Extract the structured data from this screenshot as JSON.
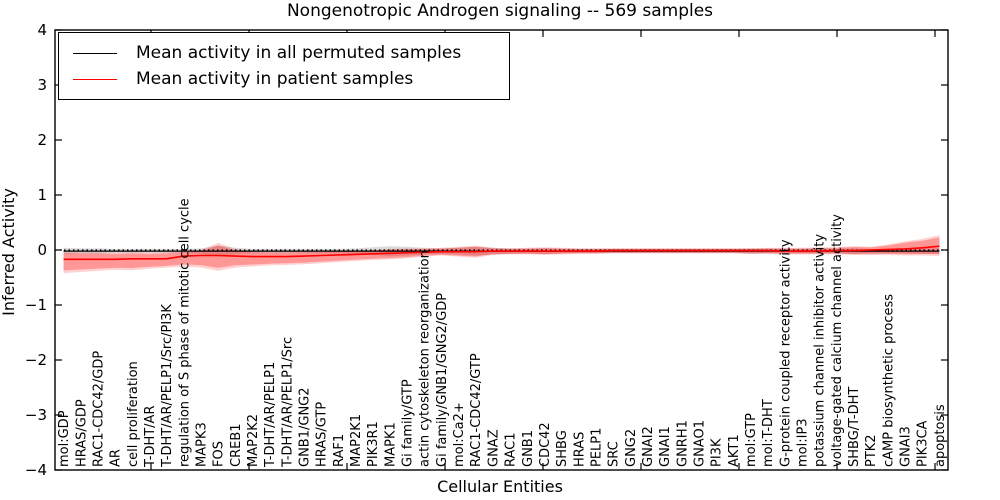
{
  "title": "Nongenotropic Androgen signaling -- 569 samples",
  "legend": {
    "entries": [
      {
        "label": "Mean activity in all permuted samples",
        "color": "#000000"
      },
      {
        "label": "Mean activity in patient samples",
        "color": "#ff0000"
      }
    ]
  },
  "chart_data": {
    "type": "line",
    "title": "Nongenotropic Androgen signaling -- 569 samples",
    "xlabel": "Cellular Entities",
    "ylabel": "Inferred Activity",
    "ylim": [
      -4,
      4
    ],
    "ytick_values": [
      4,
      3,
      2,
      1,
      0,
      -1,
      -2,
      -3,
      -4
    ],
    "ytick_labels": [
      "4",
      "3",
      "2",
      "1",
      "0",
      "−1",
      "−2",
      "−3",
      "−4"
    ],
    "grid": false,
    "legend_position": "upper left",
    "zero_reference_line": {
      "value": 0,
      "style": "dotted",
      "color": "#000000"
    },
    "categories": [
      "mol:GDP",
      "HRAS/GDP",
      "RAC1-CDC42/GDP",
      "AR",
      "cell proliferation",
      "T-DHT/AR",
      "T-DHT/AR/PELP1/Src/PI3K",
      "regulation of S phase of mitotic cell cycle",
      "MAPK3",
      "FOS",
      "CREB1",
      "MAP2K2",
      "T-DHT/AR/PELP1",
      "T-DHT/AR/PELP1/Src",
      "GNB1/GNG2",
      "HRAS/GTP",
      "RAF1",
      "MAP2K1",
      "PIK3R1",
      "MAPK1",
      "Gi family/GTP",
      "actin cytoskeleton reorganization",
      "Gi family/GNB1/GNG2/GDP",
      "mol:Ca2+",
      "RAC1-CDC42/GTP",
      "GNAZ",
      "RAC1",
      "GNB1",
      "CDC42",
      "SHBG",
      "HRAS",
      "PELP1",
      "SRC",
      "GNG2",
      "GNAI2",
      "GNAI1",
      "GNRH1",
      "GNAO1",
      "PI3K",
      "AKT1",
      "mol:GTP",
      "mol:T-DHT",
      "G-protein coupled receptor activity",
      "mol:IP3",
      "potassium channel inhibitor activity",
      "voltage-gated calcium channel activity",
      "SHBG/T-DHT",
      "PTK2",
      "cAMP biosynthetic process",
      "GNAI3",
      "PIK3CA",
      "apoptosis"
    ],
    "series": [
      {
        "name": "Mean activity in all permuted samples",
        "color": "#000000",
        "band_color": "#999999",
        "values": [
          -0.02,
          -0.02,
          -0.02,
          -0.02,
          -0.02,
          -0.02,
          -0.02,
          -0.02,
          -0.02,
          -0.02,
          -0.02,
          -0.02,
          -0.02,
          -0.02,
          -0.02,
          -0.02,
          -0.02,
          -0.02,
          -0.02,
          -0.02,
          -0.02,
          -0.02,
          -0.02,
          -0.02,
          -0.02,
          -0.02,
          -0.02,
          -0.02,
          -0.02,
          -0.02,
          -0.02,
          -0.02,
          -0.02,
          -0.02,
          -0.02,
          -0.02,
          -0.02,
          -0.02,
          -0.02,
          -0.02,
          -0.02,
          -0.02,
          -0.02,
          -0.02,
          -0.02,
          -0.02,
          -0.02,
          -0.02,
          -0.02,
          -0.02,
          -0.02,
          -0.02
        ],
        "band_halfwidth": [
          0.06,
          0.05,
          0.05,
          0.04,
          0.04,
          0.04,
          0.04,
          0.04,
          0.05,
          0.1,
          0.06,
          0.04,
          0.04,
          0.04,
          0.04,
          0.04,
          0.04,
          0.05,
          0.07,
          0.09,
          0.08,
          0.06,
          0.05,
          0.06,
          0.08,
          0.06,
          0.05,
          0.04,
          0.05,
          0.04,
          0.04,
          0.04,
          0.04,
          0.04,
          0.04,
          0.04,
          0.04,
          0.04,
          0.04,
          0.04,
          0.05,
          0.04,
          0.04,
          0.04,
          0.04,
          0.04,
          0.05,
          0.04,
          0.04,
          0.04,
          0.05,
          0.05
        ]
      },
      {
        "name": "Mean activity in patient samples",
        "color": "#ff0000",
        "band_color": "#ff0000",
        "values": [
          -0.17,
          -0.17,
          -0.17,
          -0.17,
          -0.16,
          -0.16,
          -0.16,
          -0.11,
          -0.1,
          -0.1,
          -0.11,
          -0.12,
          -0.12,
          -0.12,
          -0.11,
          -0.1,
          -0.09,
          -0.08,
          -0.07,
          -0.06,
          -0.05,
          -0.04,
          -0.03,
          -0.03,
          -0.03,
          -0.02,
          -0.02,
          -0.02,
          -0.02,
          -0.02,
          -0.02,
          -0.02,
          -0.01,
          -0.01,
          -0.01,
          -0.01,
          -0.01,
          -0.01,
          -0.01,
          -0.01,
          -0.01,
          -0.01,
          -0.02,
          -0.02,
          -0.02,
          -0.01,
          -0.01,
          0.0,
          0.01,
          0.02,
          0.04,
          0.07
        ],
        "band_top": [
          -0.03,
          -0.04,
          -0.04,
          -0.05,
          -0.04,
          -0.05,
          -0.04,
          -0.02,
          0.0,
          0.13,
          0.02,
          -0.02,
          -0.03,
          -0.03,
          -0.02,
          -0.02,
          -0.01,
          -0.01,
          0.0,
          0.02,
          0.03,
          0.03,
          0.04,
          0.06,
          0.08,
          0.04,
          0.03,
          0.04,
          0.05,
          0.04,
          0.03,
          0.03,
          0.03,
          0.03,
          0.03,
          0.03,
          0.03,
          0.03,
          0.03,
          0.03,
          0.03,
          0.04,
          0.04,
          0.04,
          0.05,
          0.05,
          0.07,
          0.06,
          0.1,
          0.16,
          0.2,
          0.27
        ],
        "band_bottom": [
          -0.42,
          -0.4,
          -0.38,
          -0.36,
          -0.37,
          -0.34,
          -0.32,
          -0.3,
          -0.32,
          -0.38,
          -0.32,
          -0.3,
          -0.28,
          -0.27,
          -0.26,
          -0.24,
          -0.22,
          -0.2,
          -0.18,
          -0.17,
          -0.15,
          -0.12,
          -0.1,
          -0.12,
          -0.14,
          -0.09,
          -0.08,
          -0.08,
          -0.09,
          -0.08,
          -0.07,
          -0.07,
          -0.06,
          -0.06,
          -0.06,
          -0.06,
          -0.06,
          -0.06,
          -0.06,
          -0.06,
          -0.07,
          -0.07,
          -0.08,
          -0.08,
          -0.08,
          -0.08,
          -0.09,
          -0.09,
          -0.09,
          -0.1,
          -0.1,
          -0.11
        ]
      }
    ]
  }
}
